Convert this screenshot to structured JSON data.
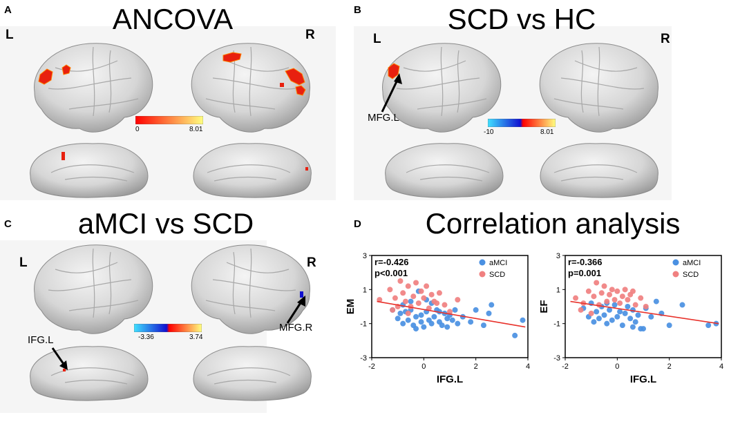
{
  "panels": {
    "a": {
      "letter": "A",
      "title": "ANCOVA",
      "left": "L",
      "right": "R",
      "colorbar": {
        "min": "0",
        "max": "8.01"
      }
    },
    "b": {
      "letter": "B",
      "title": "SCD vs HC",
      "left": "L",
      "right": "R",
      "colorbar": {
        "min": "-10",
        "max": "8.01"
      },
      "annotation": "MFG.L"
    },
    "c": {
      "letter": "C",
      "title": "aMCI vs SCD",
      "left": "L",
      "right": "R",
      "colorbar": {
        "min": "-3.36",
        "max": "3.74"
      },
      "annotation_left": "IFG.L",
      "annotation_right": "MFG.R"
    },
    "d": {
      "letter": "D",
      "title": "Correlation analysis"
    }
  },
  "colors": {
    "amci": "#4a90e2",
    "scd": "#f08080",
    "fit": "#e8312a",
    "hot_start": "#ff0000",
    "hot_end": "#ffff80",
    "cold_start": "#40e0ff",
    "cold_end": "#1010d0"
  },
  "chart_data": [
    {
      "type": "scatter",
      "title": "",
      "xlabel": "IFG.L",
      "ylabel": "EM",
      "xlim": [
        -2,
        4
      ],
      "ylim": [
        -3,
        3
      ],
      "xticks": [
        "-2",
        "0",
        "2",
        "4"
      ],
      "yticks": [
        "-3",
        "-1",
        "1",
        "3"
      ],
      "stats": [
        "r=-0.426",
        "p<0.001"
      ],
      "legend": [
        "aMCI",
        "SCD"
      ],
      "fit_line": {
        "x": [
          -1.8,
          3.9
        ],
        "y": [
          0.3,
          -1.2
        ]
      },
      "series": [
        {
          "name": "aMCI",
          "points": [
            [
              -1.2,
              -0.2
            ],
            [
              -1.0,
              -0.7
            ],
            [
              -0.9,
              -0.4
            ],
            [
              -0.8,
              -1.0
            ],
            [
              -0.7,
              -0.3
            ],
            [
              -0.6,
              -0.8
            ],
            [
              -0.5,
              -0.2
            ],
            [
              -0.4,
              -1.1
            ],
            [
              -0.3,
              -0.6
            ],
            [
              -0.2,
              0.9
            ],
            [
              -0.1,
              -0.5
            ],
            [
              0.0,
              -1.2
            ],
            [
              0.1,
              -0.3
            ],
            [
              0.2,
              -0.8
            ],
            [
              0.3,
              -1.0
            ],
            [
              0.4,
              -0.6
            ],
            [
              0.5,
              -0.2
            ],
            [
              0.6,
              -0.9
            ],
            [
              0.7,
              -1.1
            ],
            [
              0.8,
              -0.4
            ],
            [
              0.9,
              -0.7
            ],
            [
              1.0,
              -0.5
            ],
            [
              1.2,
              -0.2
            ],
            [
              1.3,
              -1.0
            ],
            [
              1.5,
              -0.6
            ],
            [
              1.8,
              -0.9
            ],
            [
              2.0,
              -0.2
            ],
            [
              2.3,
              -1.1
            ],
            [
              2.5,
              -0.4
            ],
            [
              0.1,
              0.4
            ],
            [
              -0.5,
              0.3
            ],
            [
              3.5,
              -1.7
            ],
            [
              3.8,
              -0.8
            ],
            [
              -0.8,
              0.1
            ],
            [
              0.3,
              0.2
            ],
            [
              -0.1,
              -0.9
            ],
            [
              0.6,
              -0.3
            ],
            [
              1.1,
              -0.8
            ],
            [
              2.6,
              0.1
            ],
            [
              0.9,
              -1.2
            ],
            [
              -0.3,
              -1.3
            ]
          ]
        },
        {
          "name": "SCD",
          "points": [
            [
              -1.7,
              0.4
            ],
            [
              -1.3,
              1.0
            ],
            [
              -1.1,
              0.5
            ],
            [
              -1.0,
              0.0
            ],
            [
              -0.9,
              1.5
            ],
            [
              -0.8,
              0.8
            ],
            [
              -0.7,
              0.3
            ],
            [
              -0.6,
              1.2
            ],
            [
              -0.5,
              0.0
            ],
            [
              -0.4,
              0.6
            ],
            [
              -0.3,
              1.4
            ],
            [
              -0.2,
              0.2
            ],
            [
              -0.1,
              0.9
            ],
            [
              0.0,
              0.5
            ],
            [
              0.1,
              1.2
            ],
            [
              0.2,
              -0.1
            ],
            [
              0.3,
              0.7
            ],
            [
              0.4,
              0.3
            ],
            [
              0.6,
              0.8
            ],
            [
              0.8,
              0.1
            ],
            [
              1.0,
              -0.3
            ],
            [
              1.3,
              0.4
            ],
            [
              -1.2,
              -0.2
            ],
            [
              -0.6,
              -0.4
            ],
            [
              0.5,
              0.2
            ]
          ]
        }
      ]
    },
    {
      "type": "scatter",
      "title": "",
      "xlabel": "IFG.L",
      "ylabel": "EF",
      "xlim": [
        -2,
        4
      ],
      "ylim": [
        -3,
        3
      ],
      "xticks": [
        "-2",
        "0",
        "2",
        "4"
      ],
      "yticks": [
        "-3",
        "-1",
        "1",
        "3"
      ],
      "stats": [
        "r=-0.366",
        "p=0.001"
      ],
      "legend": [
        "aMCI",
        "SCD"
      ],
      "fit_line": {
        "x": [
          -1.8,
          3.9
        ],
        "y": [
          0.3,
          -1.0
        ]
      },
      "series": [
        {
          "name": "aMCI",
          "points": [
            [
              -1.3,
              -0.1
            ],
            [
              -1.1,
              -0.6
            ],
            [
              -1.0,
              0.2
            ],
            [
              -0.9,
              -0.9
            ],
            [
              -0.8,
              -0.3
            ],
            [
              -0.7,
              -0.7
            ],
            [
              -0.6,
              0.0
            ],
            [
              -0.5,
              -0.5
            ],
            [
              -0.4,
              -1.0
            ],
            [
              -0.3,
              -0.2
            ],
            [
              -0.2,
              -0.8
            ],
            [
              -0.1,
              0.1
            ],
            [
              0.0,
              -0.6
            ],
            [
              0.1,
              -0.3
            ],
            [
              0.2,
              -1.1
            ],
            [
              0.3,
              -0.4
            ],
            [
              0.4,
              0.0
            ],
            [
              0.5,
              -0.7
            ],
            [
              0.6,
              -0.2
            ],
            [
              0.7,
              -0.9
            ],
            [
              0.8,
              -0.5
            ],
            [
              0.9,
              -1.3
            ],
            [
              1.0,
              -1.3
            ],
            [
              1.1,
              -0.1
            ],
            [
              1.3,
              -0.6
            ],
            [
              1.5,
              0.3
            ],
            [
              1.7,
              -0.4
            ],
            [
              2.0,
              -1.1
            ],
            [
              2.5,
              0.1
            ],
            [
              3.5,
              -1.1
            ],
            [
              3.8,
              -1.0
            ],
            [
              0.6,
              -1.2
            ],
            [
              -0.4,
              0.2
            ]
          ]
        },
        {
          "name": "SCD",
          "points": [
            [
              -1.6,
              0.5
            ],
            [
              -1.3,
              0.2
            ],
            [
              -1.1,
              0.9
            ],
            [
              -1.0,
              -0.4
            ],
            [
              -0.9,
              0.6
            ],
            [
              -0.8,
              1.4
            ],
            [
              -0.7,
              0.1
            ],
            [
              -0.6,
              0.8
            ],
            [
              -0.5,
              1.2
            ],
            [
              -0.4,
              0.3
            ],
            [
              -0.3,
              0.7
            ],
            [
              -0.2,
              1.0
            ],
            [
              -0.1,
              0.4
            ],
            [
              0.0,
              0.9
            ],
            [
              0.1,
              0.2
            ],
            [
              0.2,
              0.6
            ],
            [
              0.3,
              1.0
            ],
            [
              0.4,
              0.4
            ],
            [
              0.5,
              0.7
            ],
            [
              0.7,
              0.1
            ],
            [
              0.9,
              0.5
            ],
            [
              1.1,
              0.0
            ],
            [
              -1.4,
              -0.2
            ],
            [
              0.6,
              0.9
            ]
          ]
        }
      ]
    }
  ]
}
